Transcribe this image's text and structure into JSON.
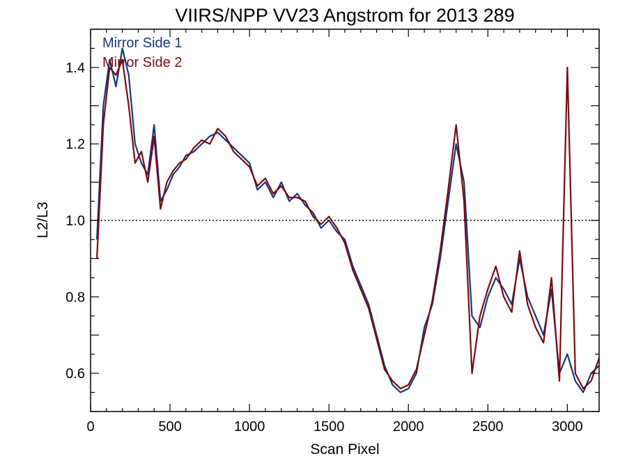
{
  "chart_data": {
    "type": "line",
    "title": "VIIRS/NPP VV23 Angstrom for 2013 289",
    "xlabel": "Scan Pixel",
    "ylabel": "L2/L3",
    "xlim": [
      0,
      3200
    ],
    "ylim": [
      0.5,
      1.5
    ],
    "x_ticks": [
      0,
      500,
      1000,
      1500,
      2000,
      2500,
      3000
    ],
    "x_tick_labels": [
      "0",
      "500",
      "1000",
      "1500",
      "2000",
      "2500",
      "3000"
    ],
    "y_ticks": [
      0.6,
      0.8,
      1.0,
      1.2,
      1.4
    ],
    "y_tick_labels": [
      "0.6",
      "0.8",
      "1.0",
      "1.2",
      "1.4"
    ],
    "reference_line": {
      "y": 1.0,
      "style": "dotted"
    },
    "legend_position": "top-left",
    "grid": false,
    "series": [
      {
        "name": "Mirror Side 1",
        "color": "#12377a",
        "x": [
          40,
          80,
          120,
          160,
          200,
          240,
          280,
          320,
          360,
          400,
          440,
          480,
          520,
          560,
          600,
          650,
          700,
          750,
          800,
          850,
          900,
          950,
          1000,
          1050,
          1100,
          1150,
          1200,
          1250,
          1300,
          1350,
          1400,
          1450,
          1500,
          1550,
          1600,
          1650,
          1700,
          1750,
          1800,
          1850,
          1900,
          1950,
          2000,
          2050,
          2100,
          2150,
          2200,
          2250,
          2300,
          2350,
          2400,
          2450,
          2500,
          2550,
          2600,
          2650,
          2700,
          2750,
          2800,
          2850,
          2900,
          2950,
          3000,
          3050,
          3100,
          3150,
          3200
        ],
        "y": [
          0.95,
          1.3,
          1.42,
          1.35,
          1.45,
          1.38,
          1.2,
          1.15,
          1.12,
          1.25,
          1.05,
          1.08,
          1.12,
          1.14,
          1.17,
          1.18,
          1.2,
          1.22,
          1.23,
          1.21,
          1.19,
          1.17,
          1.15,
          1.08,
          1.1,
          1.06,
          1.1,
          1.05,
          1.07,
          1.04,
          1.02,
          0.98,
          1.0,
          0.97,
          0.95,
          0.88,
          0.83,
          0.78,
          0.7,
          0.62,
          0.57,
          0.55,
          0.56,
          0.6,
          0.72,
          0.78,
          0.9,
          1.05,
          1.2,
          1.1,
          0.75,
          0.72,
          0.8,
          0.85,
          0.82,
          0.78,
          0.9,
          0.8,
          0.75,
          0.7,
          0.82,
          0.6,
          0.65,
          0.58,
          0.55,
          0.6,
          0.62
        ]
      },
      {
        "name": "Mirror Side 2",
        "color": "#7a0a0f",
        "x": [
          40,
          80,
          120,
          160,
          200,
          240,
          280,
          320,
          360,
          400,
          440,
          480,
          520,
          560,
          600,
          650,
          700,
          750,
          800,
          850,
          900,
          950,
          1000,
          1050,
          1100,
          1150,
          1200,
          1250,
          1300,
          1350,
          1400,
          1450,
          1500,
          1550,
          1600,
          1650,
          1700,
          1750,
          1800,
          1850,
          1900,
          1950,
          2000,
          2050,
          2100,
          2150,
          2200,
          2250,
          2300,
          2350,
          2400,
          2450,
          2500,
          2550,
          2600,
          2650,
          2700,
          2750,
          2800,
          2850,
          2900,
          2950,
          3000,
          3050,
          3100,
          3150,
          3200
        ],
        "y": [
          0.9,
          1.25,
          1.4,
          1.38,
          1.42,
          1.3,
          1.15,
          1.18,
          1.1,
          1.22,
          1.03,
          1.1,
          1.13,
          1.15,
          1.16,
          1.19,
          1.21,
          1.2,
          1.24,
          1.22,
          1.18,
          1.16,
          1.14,
          1.09,
          1.11,
          1.07,
          1.09,
          1.06,
          1.06,
          1.05,
          1.01,
          0.99,
          1.01,
          0.98,
          0.94,
          0.87,
          0.82,
          0.77,
          0.69,
          0.61,
          0.58,
          0.56,
          0.57,
          0.61,
          0.7,
          0.79,
          0.92,
          1.08,
          1.25,
          1.05,
          0.6,
          0.75,
          0.82,
          0.88,
          0.8,
          0.76,
          0.92,
          0.78,
          0.72,
          0.68,
          0.85,
          0.58,
          1.4,
          0.6,
          0.56,
          0.58,
          0.64
        ]
      }
    ]
  }
}
